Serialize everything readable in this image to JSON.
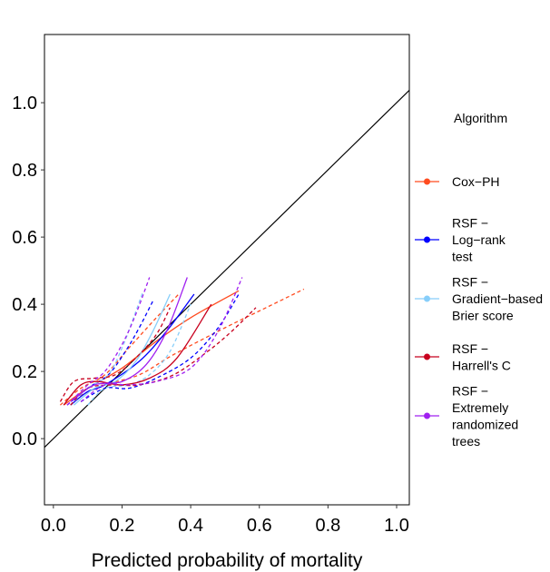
{
  "chart_data": {
    "type": "line",
    "title": "",
    "xlabel": "Predicted probability of mortality",
    "ylabel": "",
    "xlim": [
      -0.026,
      1.037
    ],
    "ylim": [
      -0.197,
      1.203
    ],
    "xticks": [
      "0.0",
      "0.2",
      "0.4",
      "0.6",
      "0.8",
      "1.0"
    ],
    "yticks": [
      "0.0",
      "0.2",
      "0.4",
      "0.6",
      "0.8",
      "1.0"
    ],
    "grid": false,
    "legend": {
      "title": "Algorithm",
      "placement": "right"
    },
    "reference_line": {
      "type": "identity",
      "color": "#000000"
    },
    "series": [
      {
        "name": "Cox−PH",
        "label_lines": [
          "Cox−PH"
        ],
        "color": "#FF4B1F",
        "fit": [
          [
            0.03,
            0.1
          ],
          [
            0.1,
            0.15
          ],
          [
            0.2,
            0.21
          ],
          [
            0.3,
            0.29
          ],
          [
            0.4,
            0.36
          ],
          [
            0.54,
            0.44
          ]
        ],
        "upper": [
          [
            0.02,
            0.1
          ],
          [
            0.08,
            0.15
          ],
          [
            0.15,
            0.19
          ],
          [
            0.22,
            0.27
          ],
          [
            0.3,
            0.36
          ],
          [
            0.365,
            0.43
          ]
        ],
        "lower": [
          [
            0.06,
            0.12
          ],
          [
            0.15,
            0.16
          ],
          [
            0.25,
            0.19
          ],
          [
            0.35,
            0.25
          ],
          [
            0.5,
            0.33
          ],
          [
            0.62,
            0.39
          ],
          [
            0.73,
            0.445
          ]
        ]
      },
      {
        "name": "RSF − Log−rank test",
        "label_lines": [
          "RSF −",
          "Log−rank",
          "test"
        ],
        "color": "#0000FF",
        "fit": [
          [
            0.05,
            0.1
          ],
          [
            0.1,
            0.14
          ],
          [
            0.15,
            0.16
          ],
          [
            0.25,
            0.23
          ],
          [
            0.33,
            0.32
          ],
          [
            0.41,
            0.43
          ]
        ],
        "upper": [
          [
            0.04,
            0.1
          ],
          [
            0.1,
            0.15
          ],
          [
            0.16,
            0.19
          ],
          [
            0.21,
            0.26
          ],
          [
            0.25,
            0.33
          ],
          [
            0.29,
            0.41
          ]
        ],
        "lower": [
          [
            0.08,
            0.11
          ],
          [
            0.15,
            0.15
          ],
          [
            0.22,
            0.15
          ],
          [
            0.3,
            0.18
          ],
          [
            0.4,
            0.24
          ],
          [
            0.48,
            0.33
          ],
          [
            0.54,
            0.43
          ]
        ]
      },
      {
        "name": "RSF − Gradient−based Brier score",
        "label_lines": [
          "RSF −",
          "Gradient−based",
          "Brier score"
        ],
        "color": "#87CEFA",
        "fit": [
          [
            0.06,
            0.1
          ],
          [
            0.12,
            0.15
          ],
          [
            0.18,
            0.17
          ],
          [
            0.24,
            0.23
          ],
          [
            0.29,
            0.32
          ],
          [
            0.34,
            0.43
          ]
        ],
        "upper": [
          [
            0.05,
            0.1
          ],
          [
            0.1,
            0.15
          ],
          [
            0.16,
            0.19
          ],
          [
            0.2,
            0.27
          ],
          [
            0.23,
            0.35
          ],
          [
            0.26,
            0.435
          ]
        ],
        "lower": [
          [
            0.1,
            0.1
          ],
          [
            0.15,
            0.15
          ],
          [
            0.22,
            0.16
          ],
          [
            0.28,
            0.19
          ],
          [
            0.34,
            0.26
          ],
          [
            0.4,
            0.4
          ]
        ]
      },
      {
        "name": "RSF − Harrell's C",
        "label_lines": [
          "RSF −",
          "Harrell's C"
        ],
        "color": "#C8001E",
        "fit": [
          [
            0.03,
            0.1
          ],
          [
            0.08,
            0.16
          ],
          [
            0.13,
            0.17
          ],
          [
            0.2,
            0.16
          ],
          [
            0.28,
            0.18
          ],
          [
            0.36,
            0.24
          ],
          [
            0.46,
            0.4
          ]
        ],
        "upper": [
          [
            0.02,
            0.11
          ],
          [
            0.06,
            0.17
          ],
          [
            0.12,
            0.18
          ],
          [
            0.18,
            0.19
          ],
          [
            0.24,
            0.24
          ],
          [
            0.3,
            0.31
          ],
          [
            0.34,
            0.39
          ]
        ],
        "lower": [
          [
            0.05,
            0.1
          ],
          [
            0.1,
            0.15
          ],
          [
            0.17,
            0.16
          ],
          [
            0.25,
            0.16
          ],
          [
            0.35,
            0.19
          ],
          [
            0.45,
            0.26
          ],
          [
            0.52,
            0.32
          ],
          [
            0.59,
            0.39
          ]
        ]
      },
      {
        "name": "RSF − Extremely randomized trees",
        "label_lines": [
          "RSF −",
          "Extremely",
          "randomized",
          "trees"
        ],
        "color": "#A020F0",
        "fit": [
          [
            0.05,
            0.11
          ],
          [
            0.12,
            0.16
          ],
          [
            0.2,
            0.17
          ],
          [
            0.27,
            0.22
          ],
          [
            0.33,
            0.32
          ],
          [
            0.39,
            0.48
          ]
        ],
        "upper": [
          [
            0.04,
            0.1
          ],
          [
            0.1,
            0.16
          ],
          [
            0.15,
            0.2
          ],
          [
            0.2,
            0.28
          ],
          [
            0.24,
            0.37
          ],
          [
            0.28,
            0.48
          ]
        ],
        "lower": [
          [
            0.08,
            0.11
          ],
          [
            0.15,
            0.16
          ],
          [
            0.22,
            0.16
          ],
          [
            0.3,
            0.17
          ],
          [
            0.4,
            0.21
          ],
          [
            0.48,
            0.32
          ],
          [
            0.55,
            0.48
          ]
        ]
      }
    ]
  }
}
